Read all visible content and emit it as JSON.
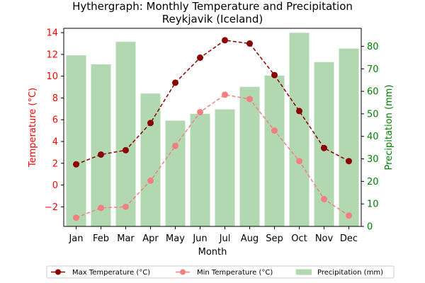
{
  "chart_data": {
    "type": "bar+line",
    "title": "Hythergraph: Monthly Temperature and Precipitation",
    "subtitle": "Reykjavik (Iceland)",
    "xlabel": "Month",
    "ylabel_left": "Temperature (°C)",
    "ylabel_right": "Precipitation (mm)",
    "categories": [
      "Jan",
      "Feb",
      "Mar",
      "Apr",
      "May",
      "Jun",
      "Jul",
      "Aug",
      "Sep",
      "Oct",
      "Nov",
      "Dec"
    ],
    "ylim_left": [
      -3.8,
      14.4
    ],
    "ylim_right": [
      0,
      88
    ],
    "yticks_left": [
      -2,
      0,
      2,
      4,
      6,
      8,
      10,
      12,
      14
    ],
    "yticks_right": [
      0,
      10,
      20,
      30,
      40,
      50,
      60,
      70,
      80
    ],
    "series": [
      {
        "name": "Max Temperature (°C)",
        "type": "line",
        "axis": "left",
        "color": "#8b0000",
        "values": [
          1.9,
          2.8,
          3.2,
          5.7,
          9.4,
          11.7,
          13.3,
          13.0,
          10.1,
          6.8,
          3.4,
          2.2
        ]
      },
      {
        "name": "Min Temperature (°C)",
        "type": "line",
        "axis": "left",
        "color": "#f08080",
        "values": [
          -3.0,
          -2.1,
          -2.0,
          0.4,
          3.6,
          6.7,
          8.3,
          7.9,
          5.0,
          2.2,
          -1.3,
          -2.8
        ]
      },
      {
        "name": "Precipitation (mm)",
        "type": "bar",
        "axis": "right",
        "color": "#b2d8b2",
        "values": [
          76,
          72,
          82,
          59,
          47,
          50,
          52,
          62,
          67,
          86,
          73,
          79
        ]
      }
    ],
    "legend_position": "bottom",
    "grid": false,
    "axis_colors": {
      "left": "#ff0000",
      "right": "#008000"
    }
  }
}
